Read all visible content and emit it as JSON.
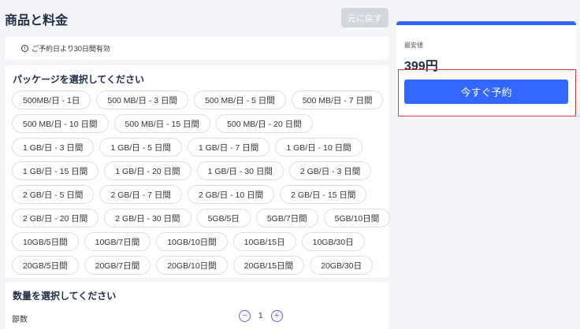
{
  "header": {
    "title": "商品と料金",
    "back_label": "元に戻す"
  },
  "notice": {
    "icon": "info-icon",
    "text": "ご予約日より30日間有効"
  },
  "packages": {
    "heading": "パッケージを選択してください",
    "rows": [
      [
        "500MB/日 - 1日",
        "500 MB/日 - 3 日間",
        "500 MB/日 - 5 日間",
        "500 MB/日 - 7 日間"
      ],
      [
        "500 MB/日 - 10 日間",
        "500 MB/日 - 15 日間",
        "500 MB/日 - 20 日間"
      ],
      [
        "1 GB/日 - 3 日間",
        "1 GB/日 - 5 日間",
        "1 GB/日 - 7 日間",
        "1 GB/日 - 10 日間"
      ],
      [
        "1 GB/日 - 15 日間",
        "1 GB/日 - 20 日間",
        "1 GB/日 - 30 日間",
        "2 GB/日 - 3 日間"
      ],
      [
        "2 GB/日 - 5 日間",
        "2 GB/日 - 7 日間",
        "2 GB/日 - 10 日間",
        "2 GB/日 - 15 日間"
      ],
      [
        "2 GB/日 - 20 日間",
        "2 GB/日 - 30 日間",
        "5GB/5日",
        "5GB/7日間",
        "5GB/10日間"
      ],
      [
        "10GB/5日間",
        "10GB/7日間",
        "10GB/10日間",
        "10GB/15日",
        "10GB/30日"
      ],
      [
        "20GB/5日間",
        "20GB/7日間",
        "20GB/10日間",
        "20GB/15日間",
        "20GB/30日"
      ]
    ]
  },
  "quantity": {
    "heading": "数量を選択してください",
    "label": "部数",
    "value": "1",
    "minus": "−",
    "plus": "+"
  },
  "summary": {
    "lowest_label": "最安値",
    "price": "399円",
    "book_label": "今すぐ予約",
    "accent": "#3366ff"
  }
}
